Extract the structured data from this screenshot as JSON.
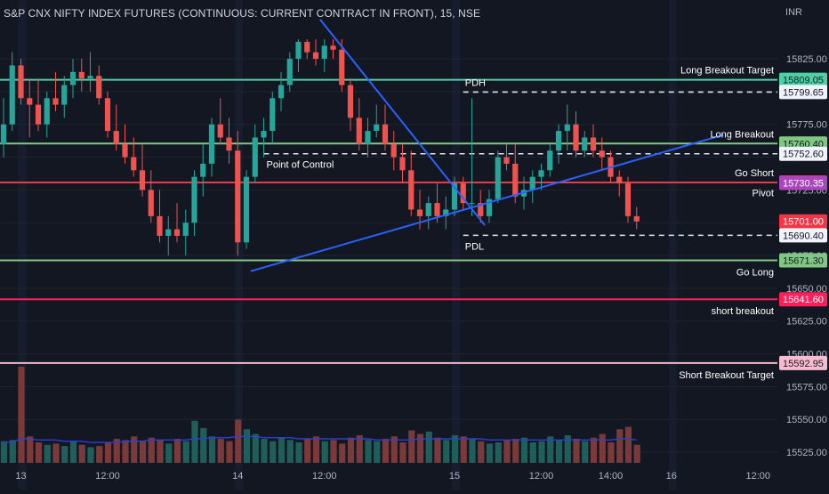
{
  "header": {
    "title": "S&P CNX NIFTY INDEX FUTURES (CONTINUOUS: CURRENT CONTRACT IN FRONT), 15, NSE",
    "currency": "INR"
  },
  "colors": {
    "background": "#131722",
    "bull": "#26a69a",
    "bear": "#ef5350",
    "bull_volume": "#1f5f5a",
    "bear_volume": "#7a3a3a",
    "trendline": "#2962ff",
    "volume_ma": "#2a3fd8",
    "green_level": "#81c784",
    "teal_level": "#4dd0a4",
    "red_level": "#f23645",
    "pink_level": "#ff1f5a",
    "light_pink_level": "#f8bbd0",
    "dashed_level": "#e0e3eb",
    "purple_badge": "#ab47bc",
    "last_badge": "#f0f3fa"
  },
  "chart_data": {
    "type": "candlestick",
    "price_axis": {
      "min": 15525,
      "max": 15840,
      "tick_labels": [
        "15825.00",
        "15800.00",
        "15775.00",
        "15750.00",
        "15725.00",
        "15700.00",
        "15675.00",
        "15650.00",
        "15625.00",
        "15600.00",
        "15575.00",
        "15550.00",
        "15525.00"
      ]
    },
    "time_axis_labels": [
      {
        "label": "13",
        "bar": 2
      },
      {
        "label": "12:00",
        "bar": 12
      },
      {
        "label": "14",
        "bar": 27
      },
      {
        "label": "12:00",
        "bar": 37
      },
      {
        "label": "15",
        "bar": 52
      },
      {
        "label": "12:00",
        "bar": 62
      },
      {
        "label": "14:00",
        "bar": 70
      },
      {
        "label": "16",
        "bar": 77
      },
      {
        "label": "12:00",
        "bar": 87
      }
    ],
    "session_separators": [
      2,
      27,
      52,
      77
    ],
    "candles": [
      {
        "o": 15760,
        "h": 15795,
        "l": 15750,
        "c": 15775
      },
      {
        "o": 15775,
        "h": 15830,
        "l": 15770,
        "c": 15820
      },
      {
        "o": 15820,
        "h": 15825,
        "l": 15790,
        "c": 15795
      },
      {
        "o": 15795,
        "h": 15810,
        "l": 15765,
        "c": 15790
      },
      {
        "o": 15790,
        "h": 15810,
        "l": 15770,
        "c": 15775
      },
      {
        "o": 15775,
        "h": 15800,
        "l": 15765,
        "c": 15795
      },
      {
        "o": 15795,
        "h": 15815,
        "l": 15785,
        "c": 15790
      },
      {
        "o": 15790,
        "h": 15812,
        "l": 15780,
        "c": 15805
      },
      {
        "o": 15805,
        "h": 15825,
        "l": 15795,
        "c": 15815
      },
      {
        "o": 15815,
        "h": 15825,
        "l": 15800,
        "c": 15810
      },
      {
        "o": 15810,
        "h": 15830,
        "l": 15800,
        "c": 15812
      },
      {
        "o": 15812,
        "h": 15820,
        "l": 15790,
        "c": 15795
      },
      {
        "o": 15795,
        "h": 15800,
        "l": 15765,
        "c": 15770
      },
      {
        "o": 15770,
        "h": 15790,
        "l": 15755,
        "c": 15760
      },
      {
        "o": 15760,
        "h": 15775,
        "l": 15745,
        "c": 15750
      },
      {
        "o": 15750,
        "h": 15765,
        "l": 15735,
        "c": 15740
      },
      {
        "o": 15740,
        "h": 15760,
        "l": 15720,
        "c": 15725
      },
      {
        "o": 15725,
        "h": 15740,
        "l": 15700,
        "c": 15705
      },
      {
        "o": 15705,
        "h": 15725,
        "l": 15685,
        "c": 15690
      },
      {
        "o": 15690,
        "h": 15705,
        "l": 15675,
        "c": 15695
      },
      {
        "o": 15695,
        "h": 15715,
        "l": 15685,
        "c": 15690
      },
      {
        "o": 15690,
        "h": 15710,
        "l": 15675,
        "c": 15700
      },
      {
        "o": 15700,
        "h": 15740,
        "l": 15690,
        "c": 15735
      },
      {
        "o": 15735,
        "h": 15760,
        "l": 15720,
        "c": 15745
      },
      {
        "o": 15745,
        "h": 15780,
        "l": 15735,
        "c": 15775
      },
      {
        "o": 15775,
        "h": 15795,
        "l": 15760,
        "c": 15765
      },
      {
        "o": 15765,
        "h": 15780,
        "l": 15745,
        "c": 15755
      },
      {
        "o": 15755,
        "h": 15770,
        "l": 15675,
        "c": 15685
      },
      {
        "o": 15685,
        "h": 15740,
        "l": 15680,
        "c": 15735
      },
      {
        "o": 15735,
        "h": 15775,
        "l": 15730,
        "c": 15765
      },
      {
        "o": 15765,
        "h": 15780,
        "l": 15750,
        "c": 15770
      },
      {
        "o": 15770,
        "h": 15800,
        "l": 15760,
        "c": 15795
      },
      {
        "o": 15795,
        "h": 15815,
        "l": 15785,
        "c": 15805
      },
      {
        "o": 15805,
        "h": 15830,
        "l": 15800,
        "c": 15825
      },
      {
        "o": 15825,
        "h": 15840,
        "l": 15815,
        "c": 15838
      },
      {
        "o": 15838,
        "h": 15840,
        "l": 15825,
        "c": 15830
      },
      {
        "o": 15830,
        "h": 15840,
        "l": 15820,
        "c": 15825
      },
      {
        "o": 15825,
        "h": 15840,
        "l": 15815,
        "c": 15835
      },
      {
        "o": 15835,
        "h": 15840,
        "l": 15825,
        "c": 15832
      },
      {
        "o": 15832,
        "h": 15840,
        "l": 15800,
        "c": 15805
      },
      {
        "o": 15805,
        "h": 15810,
        "l": 15770,
        "c": 15780
      },
      {
        "o": 15780,
        "h": 15795,
        "l": 15755,
        "c": 15760
      },
      {
        "o": 15760,
        "h": 15780,
        "l": 15750,
        "c": 15770
      },
      {
        "o": 15770,
        "h": 15790,
        "l": 15765,
        "c": 15775
      },
      {
        "o": 15775,
        "h": 15790,
        "l": 15755,
        "c": 15760
      },
      {
        "o": 15760,
        "h": 15770,
        "l": 15740,
        "c": 15750
      },
      {
        "o": 15750,
        "h": 15760,
        "l": 15730,
        "c": 15740
      },
      {
        "o": 15740,
        "h": 15755,
        "l": 15705,
        "c": 15710
      },
      {
        "o": 15710,
        "h": 15725,
        "l": 15695,
        "c": 15705
      },
      {
        "o": 15705,
        "h": 15720,
        "l": 15695,
        "c": 15715
      },
      {
        "o": 15715,
        "h": 15730,
        "l": 15700,
        "c": 15705
      },
      {
        "o": 15705,
        "h": 15720,
        "l": 15695,
        "c": 15710
      },
      {
        "o": 15710,
        "h": 15735,
        "l": 15705,
        "c": 15730
      },
      {
        "o": 15730,
        "h": 15735,
        "l": 15710,
        "c": 15715
      },
      {
        "o": 15715,
        "h": 15795,
        "l": 15705,
        "c": 15715
      },
      {
        "o": 15715,
        "h": 15725,
        "l": 15700,
        "c": 15705
      },
      {
        "o": 15705,
        "h": 15725,
        "l": 15700,
        "c": 15718
      },
      {
        "o": 15718,
        "h": 15755,
        "l": 15715,
        "c": 15750
      },
      {
        "o": 15750,
        "h": 15760,
        "l": 15740,
        "c": 15745
      },
      {
        "o": 15745,
        "h": 15760,
        "l": 15715,
        "c": 15720
      },
      {
        "o": 15720,
        "h": 15735,
        "l": 15710,
        "c": 15725
      },
      {
        "o": 15725,
        "h": 15740,
        "l": 15715,
        "c": 15735
      },
      {
        "o": 15735,
        "h": 15745,
        "l": 15725,
        "c": 15740
      },
      {
        "o": 15740,
        "h": 15760,
        "l": 15735,
        "c": 15755
      },
      {
        "o": 15755,
        "h": 15775,
        "l": 15745,
        "c": 15770
      },
      {
        "o": 15770,
        "h": 15790,
        "l": 15755,
        "c": 15775
      },
      {
        "o": 15775,
        "h": 15785,
        "l": 15750,
        "c": 15755
      },
      {
        "o": 15755,
        "h": 15770,
        "l": 15750,
        "c": 15765
      },
      {
        "o": 15765,
        "h": 15775,
        "l": 15750,
        "c": 15755
      },
      {
        "o": 15755,
        "h": 15765,
        "l": 15740,
        "c": 15750
      },
      {
        "o": 15750,
        "h": 15755,
        "l": 15730,
        "c": 15735
      },
      {
        "o": 15735,
        "h": 15740,
        "l": 15720,
        "c": 15730
      },
      {
        "o": 15730,
        "h": 15735,
        "l": 15700,
        "c": 15705
      },
      {
        "o": 15705,
        "h": 15712,
        "l": 15695,
        "c": 15701
      }
    ],
    "volume": [
      18,
      19,
      80,
      22,
      17,
      15,
      16,
      14,
      18,
      15,
      13,
      14,
      17,
      20,
      19,
      22,
      18,
      21,
      19,
      16,
      20,
      18,
      35,
      29,
      22,
      20,
      18,
      36,
      28,
      24,
      20,
      18,
      21,
      19,
      17,
      20,
      22,
      18,
      19,
      16,
      21,
      23,
      19,
      18,
      20,
      22,
      17,
      27,
      24,
      26,
      21,
      19,
      23,
      22,
      20,
      18,
      16,
      17,
      19,
      20,
      21,
      17,
      18,
      22,
      19,
      23,
      20,
      18,
      21,
      24,
      17,
      28,
      30,
      15
    ],
    "volume_ma": [
      17,
      17,
      20,
      20,
      19,
      19,
      19,
      18,
      18,
      18,
      17,
      17,
      17,
      17,
      18,
      18,
      18,
      19,
      19,
      19,
      19,
      19,
      20,
      20,
      21,
      21,
      21,
      22,
      22,
      22,
      21,
      21,
      21,
      21,
      20,
      20,
      20,
      20,
      20,
      20,
      20,
      20,
      20,
      19,
      19,
      19,
      19,
      19,
      20,
      20,
      20,
      20,
      20,
      20,
      20,
      20,
      19,
      19,
      19,
      19,
      19,
      19,
      19,
      19,
      19,
      19,
      19,
      19,
      19,
      19,
      19,
      20,
      20,
      19
    ],
    "horizontal_levels": [
      {
        "name": "Long Breakout Target",
        "label": "Long Breakout Target",
        "price": 15809.05,
        "badge": "15809.05",
        "color_key": "teal_level",
        "style": "solid"
      },
      {
        "name": "PDH",
        "label": "PDH",
        "price": 15799.65,
        "badge": "15799.65",
        "color_key": "dashed_level",
        "style": "dashed",
        "from_bar": 53
      },
      {
        "name": "Long Breakout",
        "label": "Long Breakout",
        "price": 15760.4,
        "badge": "15760.40",
        "color_key": "green_level",
        "style": "solid"
      },
      {
        "name": "Point of Control",
        "label": "Point of Control",
        "price": 15752.6,
        "badge": "15752.60",
        "color_key": "dashed_level",
        "style": "dashed",
        "from_bar": 30
      },
      {
        "name": "Go Short",
        "label": "Go Short",
        "price": 15730.7,
        "badge": "15730.70",
        "color_key": "red_level",
        "style": "solid"
      },
      {
        "name": "Pivot",
        "label": "Pivot",
        "price": 15730.35,
        "badge": "15730.35",
        "color_key": "purple_badge",
        "style": "none"
      },
      {
        "name": "Current",
        "label": "",
        "price": 15701.0,
        "badge": "15701.00",
        "color_key": "red_level",
        "style": "none"
      },
      {
        "name": "PDL",
        "label": "PDL",
        "price": 15690.4,
        "badge": "15690.40",
        "color_key": "dashed_level",
        "style": "dashed",
        "from_bar": 53
      },
      {
        "name": "Go Long",
        "label": "Go Long",
        "price": 15671.3,
        "badge": "15671.30",
        "color_key": "green_level",
        "style": "solid"
      },
      {
        "name": "short breakout",
        "label": "short breakout",
        "price": 15641.6,
        "badge": "15641.60",
        "color_key": "pink_level",
        "style": "solid"
      },
      {
        "name": "Short Breakout Target",
        "label": "Short  Breakout Target",
        "price": 15592.95,
        "badge": "15592.95",
        "color_key": "light_pink_level",
        "style": "solid"
      }
    ],
    "trendlines": [
      {
        "from": {
          "bar": 28.5,
          "price": 15663
        },
        "to": {
          "bar": 83,
          "price": 15767
        }
      },
      {
        "from": {
          "bar": 36.5,
          "price": 15855
        },
        "to": {
          "bar": 55.5,
          "price": 15698
        }
      }
    ],
    "price_mid_label": "15725.00"
  }
}
